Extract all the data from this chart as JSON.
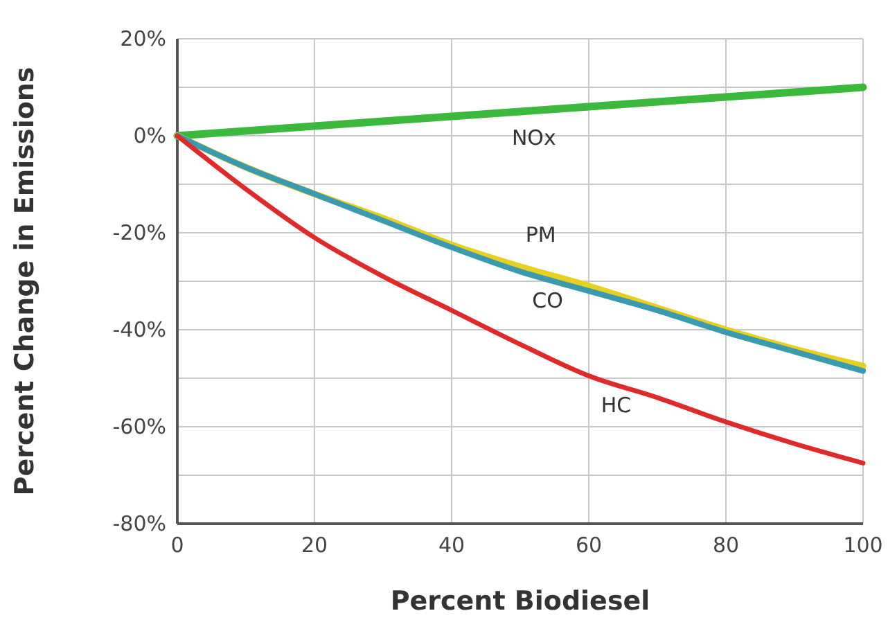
{
  "chart_data": {
    "type": "line",
    "xlabel": "Percent Biodiesel",
    "ylabel": "Percent Change in Emissions",
    "x": [
      0,
      10,
      20,
      30,
      40,
      50,
      60,
      70,
      80,
      90,
      100
    ],
    "series": [
      {
        "name": "NOx",
        "color": "#3cb83c",
        "values": [
          0,
          1,
          2,
          3,
          4,
          5,
          6,
          7,
          8,
          9,
          10
        ]
      },
      {
        "name": "PM",
        "color": "#e8d020",
        "values": [
          0,
          -6.5,
          -12,
          -17,
          -22.5,
          -27,
          -31,
          -35.5,
          -40,
          -44,
          -47.5
        ]
      },
      {
        "name": "CO",
        "color": "#3a9ab0",
        "values": [
          0,
          -6.5,
          -12,
          -17.5,
          -23,
          -28,
          -32,
          -36,
          -40.5,
          -44.5,
          -48.5
        ]
      },
      {
        "name": "HC",
        "color": "#e02a2a",
        "values": [
          0,
          -11,
          -21,
          -29,
          -36,
          -43,
          -49.5,
          -54,
          -59,
          -63.5,
          -67.5
        ]
      }
    ],
    "xlim": [
      0,
      100
    ],
    "ylim": [
      -80,
      20
    ],
    "xticks": [
      0,
      20,
      40,
      60,
      80,
      100
    ],
    "yticks": [
      {
        "value": -80,
        "label": "-80%"
      },
      {
        "value": -70,
        "label": null
      },
      {
        "value": -60,
        "label": "-60%"
      },
      {
        "value": -50,
        "label": null
      },
      {
        "value": -40,
        "label": "-40%"
      },
      {
        "value": -30,
        "label": null
      },
      {
        "value": -20,
        "label": "-20%"
      },
      {
        "value": -10,
        "label": null
      },
      {
        "value": 0,
        "label": "0%"
      },
      {
        "value": 10,
        "label": null
      },
      {
        "value": 20,
        "label": "20%"
      }
    ],
    "grid": true,
    "legend": false,
    "marker": "none",
    "line_style": "solid"
  }
}
